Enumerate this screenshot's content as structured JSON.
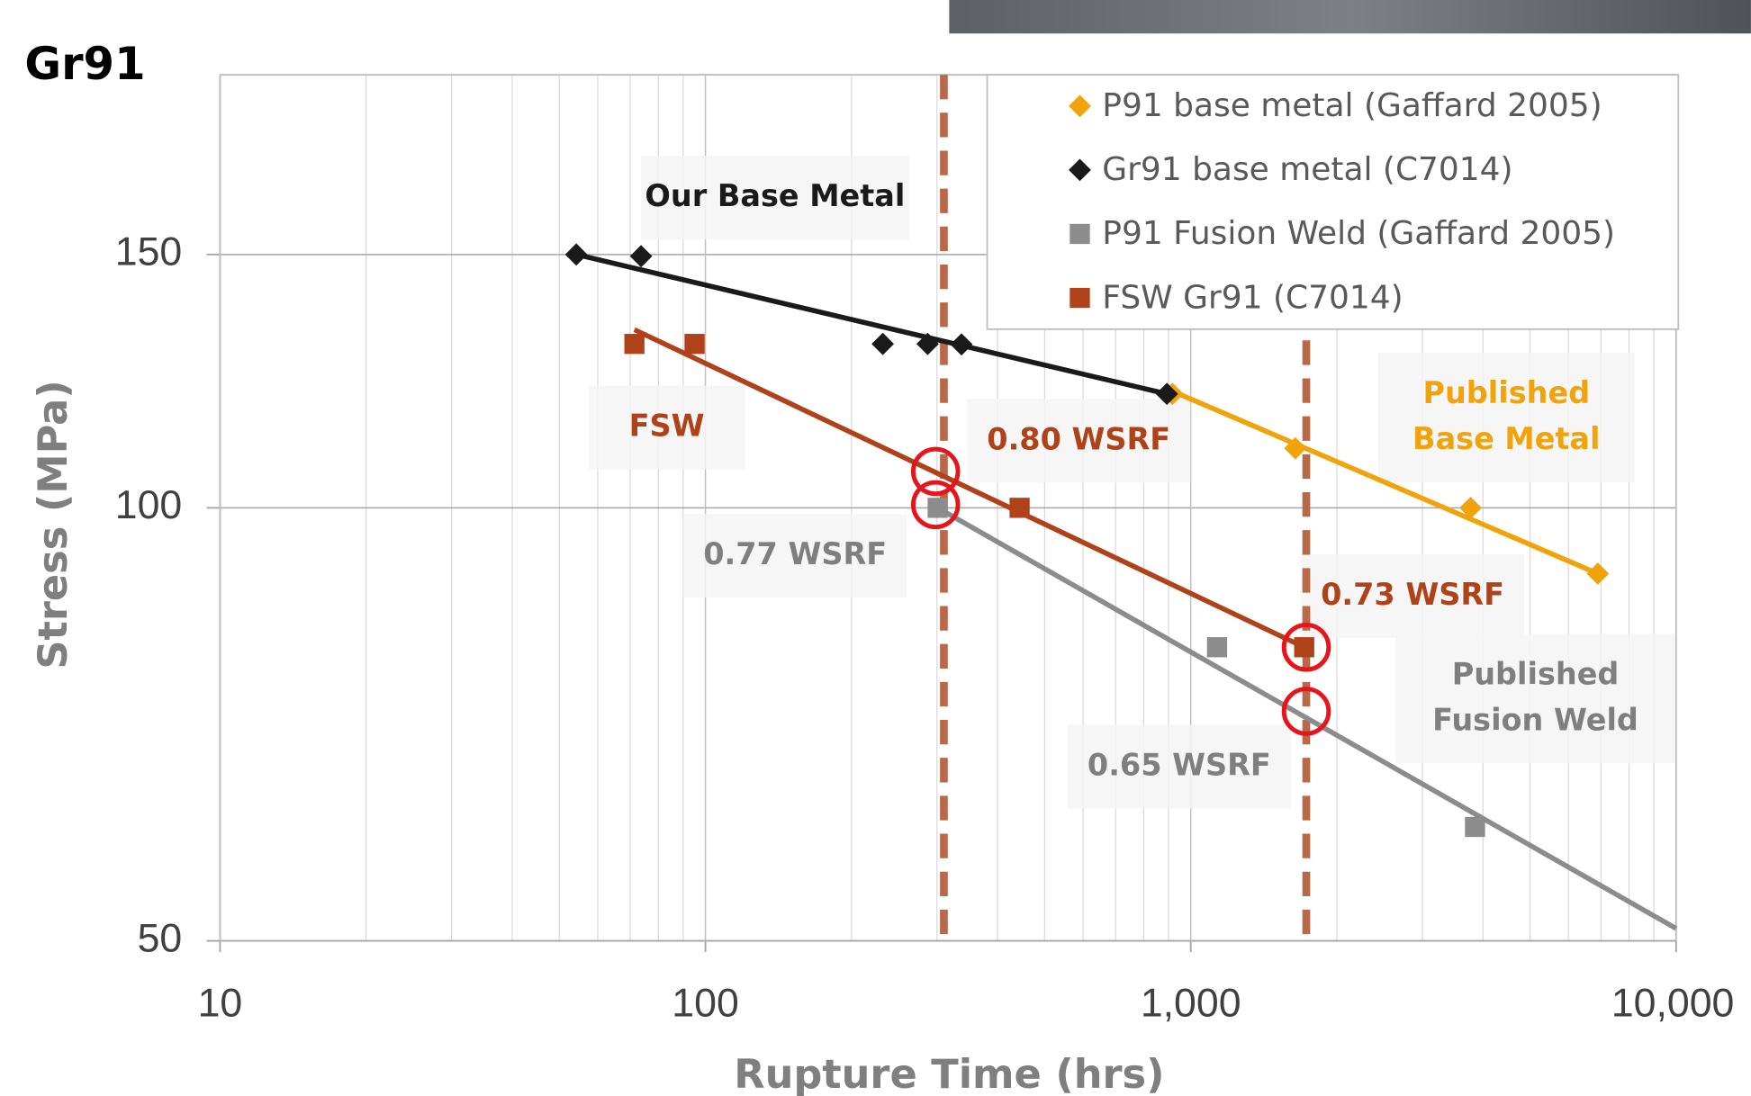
{
  "chart_data": {
    "type": "scatter",
    "panel_label": "Gr91",
    "x_label": "Rupture Time (hrs)",
    "y_label": "Stress (MPa)",
    "x_scale": "log",
    "y_scale": "log",
    "xlim": [
      10,
      10000
    ],
    "ylim": [
      50,
      200
    ],
    "xticks": [
      10,
      100,
      {
        "value": 1000,
        "label": "1,000"
      },
      {
        "value": 10000,
        "label": "10,000"
      }
    ],
    "yticks": [
      50,
      100,
      150
    ],
    "grid": true,
    "legend": "upper right",
    "series": [
      {
        "name": "P91 base metal (Gaffard 2005)",
        "color": "#f0a30a",
        "marker": "diamond",
        "x": [
          917,
          1642,
          3772,
          6897
        ],
        "values": [
          120,
          110,
          100,
          90
        ],
        "trend": {
          "x": [
            893,
            6897
          ],
          "values": [
            121,
            90
          ]
        }
      },
      {
        "name": "Gr91 base metal (C7014)",
        "color": "#1a1a1a",
        "marker": "diamond",
        "x": [
          54.2,
          73.7,
          232,
          287,
          337,
          893
        ],
        "values": [
          150,
          149.6,
          130,
          130,
          129.9,
          120
        ],
        "trend": {
          "x": [
            54.2,
            893
          ],
          "values": [
            150,
            120
          ]
        }
      },
      {
        "name": "P91 Fusion Weld (Gaffard 2005)",
        "color": "#8c8c8c",
        "marker": "square",
        "x": [
          301,
          1133,
          3852
        ],
        "values": [
          100,
          80,
          60
        ],
        "trend": {
          "x": [
            301,
            10000
          ],
          "values": [
            100,
            51
          ]
        }
      },
      {
        "name": "FSW Gr91 (C7014)",
        "color": "#b0421a",
        "marker": "square",
        "x": [
          71.4,
          95,
          444,
          1713
        ],
        "values": [
          130,
          130,
          100,
          80
        ],
        "trend": {
          "x": [
            71.4,
            1713
          ],
          "values": [
            133,
            80
          ]
        }
      }
    ],
    "reference_lines": {
      "color": "#b8694a",
      "x": [
        310,
        1730
      ]
    },
    "highlights": {
      "color": "#e8141b",
      "x": [
        298,
        298,
        1730,
        1730
      ],
      "values": [
        106,
        100.5,
        80,
        72.2
      ]
    },
    "annotations": [
      {
        "lines": [
          "Our Base Metal"
        ],
        "color": "#1a1a1a"
      },
      {
        "lines": [
          "FSW"
        ],
        "color": "#b0421a"
      },
      {
        "lines": [
          "0.80 WSRF"
        ],
        "color": "#b0421a"
      },
      {
        "lines": [
          "0.77 WSRF"
        ],
        "color": "#7f7f7f"
      },
      {
        "lines": [
          "0.73 WSRF"
        ],
        "color": "#b0421a"
      },
      {
        "lines": [
          "0.65 WSRF"
        ],
        "color": "#7f7f7f"
      },
      {
        "lines": [
          "Published",
          "Base Metal"
        ],
        "color": "#f0a30a"
      },
      {
        "lines": [
          "Published",
          "Fusion Weld"
        ],
        "color": "#7f7f7f"
      }
    ]
  }
}
